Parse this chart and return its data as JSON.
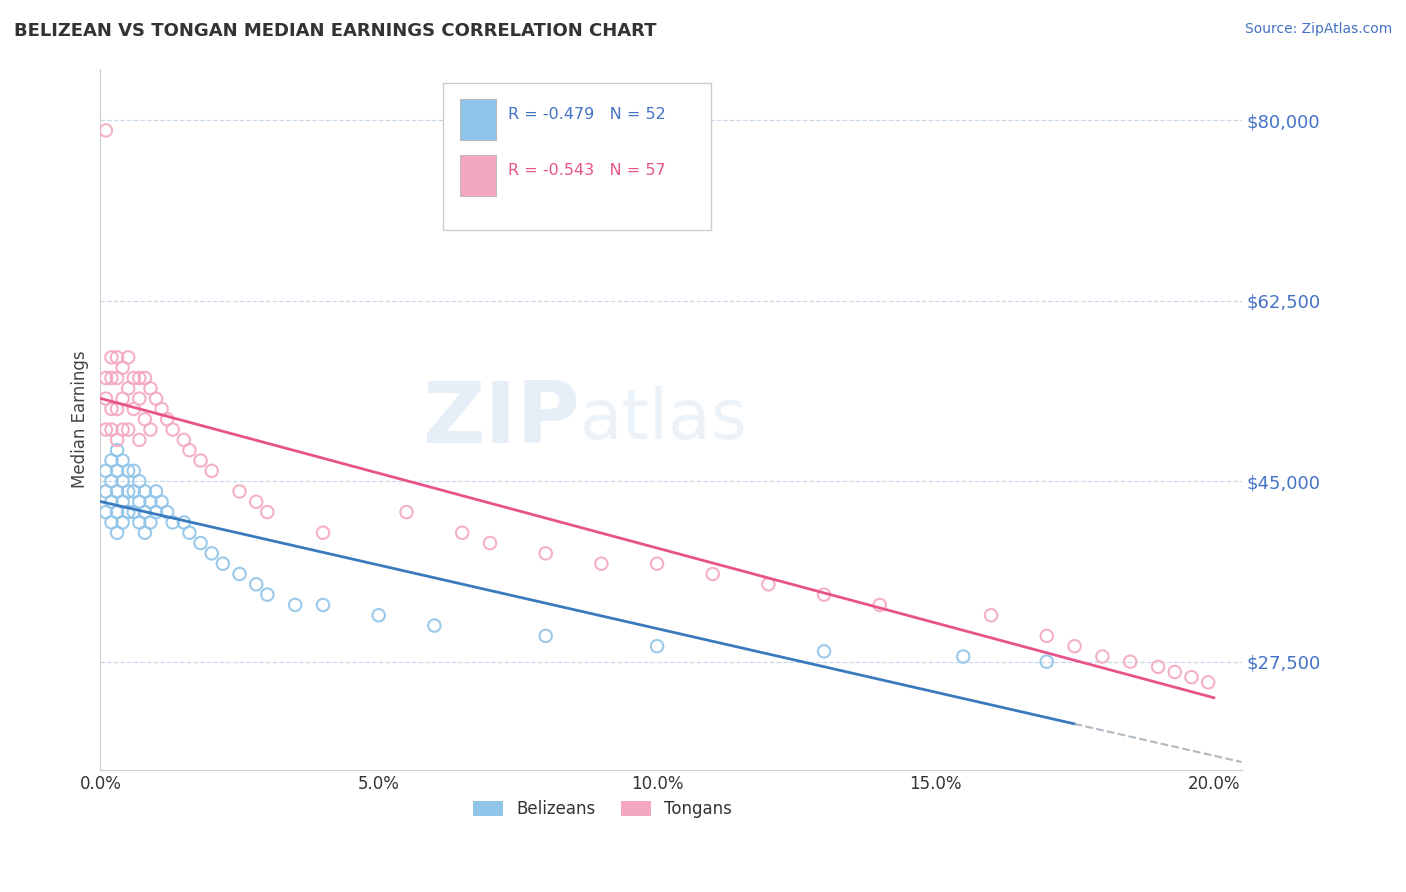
{
  "title": "BELIZEAN VS TONGAN MEDIAN EARNINGS CORRELATION CHART",
  "source": "Source: ZipAtlas.com",
  "ylabel": "Median Earnings",
  "xlim": [
    0.0,
    0.205
  ],
  "ylim": [
    17000,
    85000
  ],
  "yticks": [
    27500,
    45000,
    62500,
    80000
  ],
  "ytick_labels": [
    "$27,500",
    "$45,000",
    "$62,500",
    "$80,000"
  ],
  "xticks": [
    0.0,
    0.05,
    0.1,
    0.15,
    0.2
  ],
  "xtick_labels": [
    "0.0%",
    "5.0%",
    "10.0%",
    "15.0%",
    "20.0%"
  ],
  "legend_r_labels": [
    "R = -0.479   N = 52",
    "R = -0.543   N = 57"
  ],
  "legend_labels": [
    "Belizeans",
    "Tongans"
  ],
  "blue_scatter_color": "#90c4e8",
  "pink_scatter_color": "#f4a8c0",
  "blue_line_color": "#3a7abf",
  "pink_line_color": "#e8548a",
  "dash_color": "#b0b8c0",
  "watermark_text": "ZIPatlas",
  "belizean_x": [
    0.001,
    0.001,
    0.001,
    0.002,
    0.002,
    0.002,
    0.002,
    0.003,
    0.003,
    0.003,
    0.003,
    0.003,
    0.004,
    0.004,
    0.004,
    0.004,
    0.005,
    0.005,
    0.005,
    0.006,
    0.006,
    0.006,
    0.007,
    0.007,
    0.007,
    0.008,
    0.008,
    0.008,
    0.009,
    0.009,
    0.01,
    0.01,
    0.011,
    0.012,
    0.013,
    0.015,
    0.016,
    0.018,
    0.02,
    0.022,
    0.025,
    0.028,
    0.03,
    0.035,
    0.04,
    0.05,
    0.06,
    0.08,
    0.1,
    0.13,
    0.155,
    0.17
  ],
  "belizean_y": [
    46000,
    44000,
    42000,
    47000,
    45000,
    43000,
    41000,
    48000,
    46000,
    44000,
    42000,
    40000,
    47000,
    45000,
    43000,
    41000,
    46000,
    44000,
    42000,
    46000,
    44000,
    42000,
    45000,
    43000,
    41000,
    44000,
    42000,
    40000,
    43000,
    41000,
    44000,
    42000,
    43000,
    42000,
    41000,
    41000,
    40000,
    39000,
    38000,
    37000,
    36000,
    35000,
    34000,
    33000,
    33000,
    32000,
    31000,
    30000,
    29000,
    28500,
    28000,
    27500
  ],
  "tongan_x": [
    0.001,
    0.001,
    0.001,
    0.002,
    0.002,
    0.002,
    0.002,
    0.003,
    0.003,
    0.003,
    0.003,
    0.004,
    0.004,
    0.004,
    0.005,
    0.005,
    0.005,
    0.006,
    0.006,
    0.007,
    0.007,
    0.007,
    0.008,
    0.008,
    0.009,
    0.009,
    0.01,
    0.011,
    0.012,
    0.013,
    0.015,
    0.016,
    0.018,
    0.02,
    0.025,
    0.028,
    0.03,
    0.04,
    0.055,
    0.065,
    0.07,
    0.08,
    0.09,
    0.1,
    0.11,
    0.12,
    0.13,
    0.14,
    0.16,
    0.17,
    0.175,
    0.18,
    0.185,
    0.19,
    0.193,
    0.196,
    0.199
  ],
  "tongan_y": [
    55000,
    53000,
    50000,
    57000,
    55000,
    52000,
    50000,
    57000,
    55000,
    52000,
    49000,
    56000,
    53000,
    50000,
    57000,
    54000,
    50000,
    55000,
    52000,
    55000,
    53000,
    49000,
    55000,
    51000,
    54000,
    50000,
    53000,
    52000,
    51000,
    50000,
    49000,
    48000,
    47000,
    46000,
    44000,
    43000,
    42000,
    40000,
    42000,
    40000,
    39000,
    38000,
    37000,
    37000,
    36000,
    35000,
    34000,
    33000,
    32000,
    30000,
    29000,
    28000,
    27500,
    27000,
    26500,
    26000,
    25500
  ],
  "tongan_outlier_x": [
    0.001
  ],
  "tongan_outlier_y": [
    79000
  ]
}
